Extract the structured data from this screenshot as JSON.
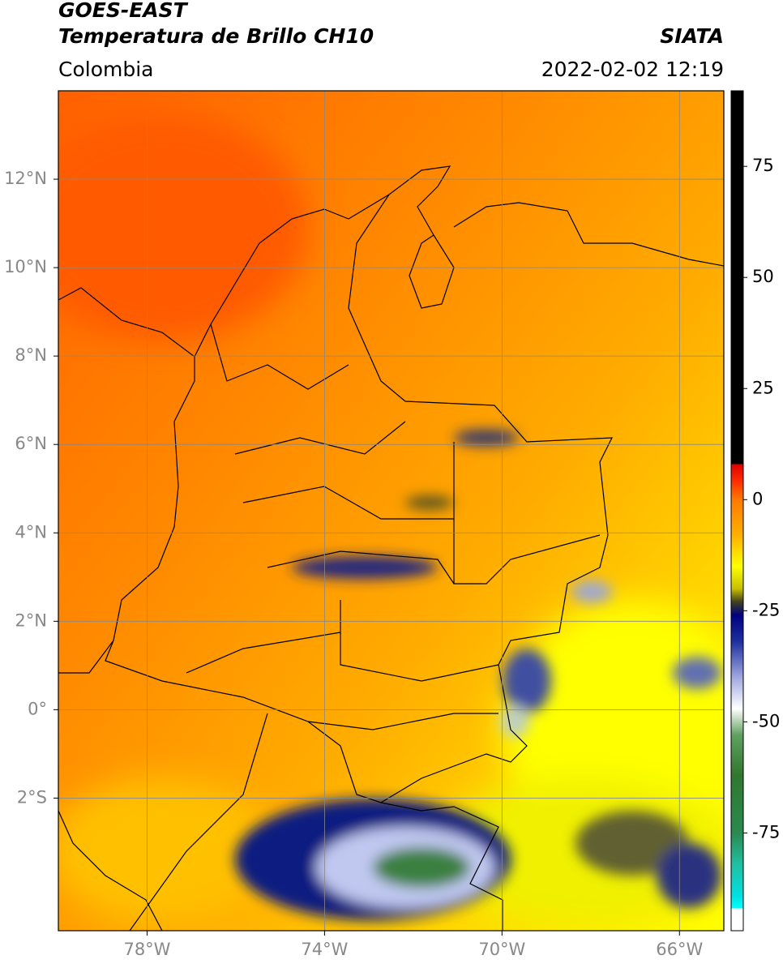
{
  "chart_data": {
    "type": "map",
    "title": "GOES-EAST",
    "subtitle": "Temperatura de Brillo CH10",
    "source": "SIATA",
    "region": "Colombia",
    "timestamp": "2022-02-02 12:19",
    "xlim": [
      -80,
      -65
    ],
    "ylim": [
      -5,
      14
    ],
    "xticks": [
      {
        "value": -78,
        "label": "78°W"
      },
      {
        "value": -74,
        "label": "74°W"
      },
      {
        "value": -70,
        "label": "70°W"
      },
      {
        "value": -66,
        "label": "66°W"
      }
    ],
    "yticks": [
      {
        "value": 12,
        "label": "12°N"
      },
      {
        "value": 10,
        "label": "10°N"
      },
      {
        "value": 8,
        "label": "8°N"
      },
      {
        "value": 6,
        "label": "6°N"
      },
      {
        "value": 4,
        "label": "4°N"
      },
      {
        "value": 2,
        "label": "2°N"
      },
      {
        "value": 0,
        "label": "0°"
      },
      {
        "value": -2,
        "label": "2°S"
      }
    ],
    "grid": true,
    "colorbar": {
      "lim": [
        -97,
        92
      ],
      "ticks": [
        75,
        50,
        25,
        0,
        -25,
        -50,
        -75
      ],
      "colormap": [
        {
          "value": 92,
          "color": "#000000"
        },
        {
          "value": 8,
          "color": "#000000"
        },
        {
          "value": 8,
          "color": "#e00000"
        },
        {
          "value": 4,
          "color": "#ff3000"
        },
        {
          "value": 0,
          "color": "#ff7a00"
        },
        {
          "value": -8,
          "color": "#ffb000"
        },
        {
          "value": -15,
          "color": "#ffff00"
        },
        {
          "value": -20,
          "color": "#c8c000"
        },
        {
          "value": -23,
          "color": "#404020"
        },
        {
          "value": -26,
          "color": "#000080"
        },
        {
          "value": -32,
          "color": "#2030a0"
        },
        {
          "value": -40,
          "color": "#a0a8e0"
        },
        {
          "value": -47,
          "color": "#ffffff"
        },
        {
          "value": -53,
          "color": "#60a060"
        },
        {
          "value": -62,
          "color": "#307830"
        },
        {
          "value": -75,
          "color": "#2a8a50"
        },
        {
          "value": -82,
          "color": "#20c0a0"
        },
        {
          "value": -89,
          "color": "#00e0e0"
        },
        {
          "value": -92,
          "color": "#00ffff"
        },
        {
          "value": -92,
          "color": "#ffffff"
        },
        {
          "value": -97,
          "color": "#ffffff"
        }
      ]
    }
  }
}
